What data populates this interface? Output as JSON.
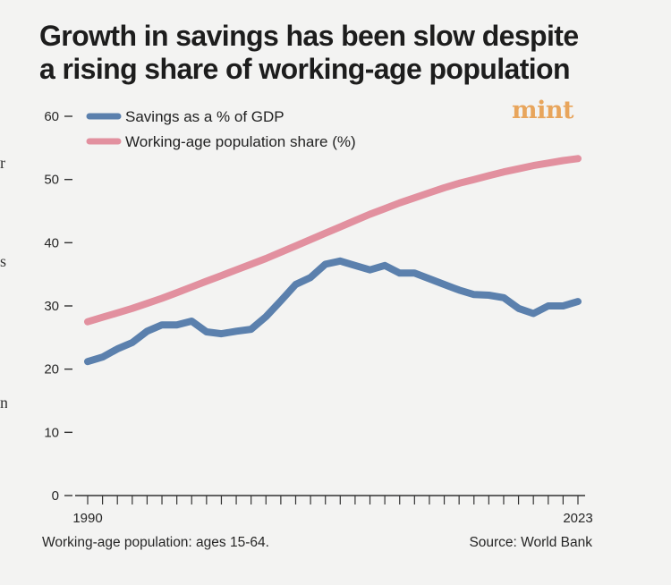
{
  "title_lines": [
    "Growth in savings has been slow despite",
    "a rising share of working-age population"
  ],
  "brand": "mint",
  "edge_glyphs": [
    "r",
    "s",
    "n"
  ],
  "footnote": "Working-age population: ages 15-64.",
  "source": "Source: World Bank",
  "colors": {
    "background": "#f3f3f2",
    "savings": "#5b80ad",
    "population": "#e2909f",
    "brand": "#e8a55c",
    "axis": "#333333"
  },
  "chart_data": {
    "type": "line",
    "title": "Growth in savings has been slow despite a rising share of working-age population",
    "xlabel": "",
    "ylabel": "",
    "xlim": [
      1990,
      2023
    ],
    "ylim": [
      0,
      60
    ],
    "yticks": [
      0,
      10,
      20,
      30,
      40,
      50,
      60
    ],
    "x_tick_labels": [
      "1990",
      "2023"
    ],
    "legend_position": "top-left",
    "x": [
      1990,
      1991,
      1992,
      1993,
      1994,
      1995,
      1996,
      1997,
      1998,
      1999,
      2000,
      2001,
      2002,
      2003,
      2004,
      2005,
      2006,
      2007,
      2008,
      2009,
      2010,
      2011,
      2012,
      2013,
      2014,
      2015,
      2016,
      2017,
      2018,
      2019,
      2020,
      2021,
      2022,
      2023
    ],
    "series": [
      {
        "name": "Savings as a % of GDP",
        "color": "#5b80ad",
        "values": [
          21.2,
          21.9,
          23.2,
          24.2,
          26.0,
          27.0,
          27.0,
          27.6,
          25.9,
          25.6,
          26.0,
          26.3,
          28.3,
          30.8,
          33.4,
          34.5,
          36.6,
          37.1,
          36.4,
          35.7,
          36.4,
          35.2,
          35.2,
          34.3,
          33.4,
          32.5,
          31.8,
          31.7,
          31.3,
          29.6,
          28.8,
          30.0,
          30.0,
          30.7
        ]
      },
      {
        "name": "Working-age population share (%)",
        "color": "#e2909f",
        "values": [
          27.5,
          28.2,
          28.9,
          29.6,
          30.4,
          31.2,
          32.1,
          33.0,
          33.9,
          34.8,
          35.7,
          36.6,
          37.5,
          38.5,
          39.5,
          40.5,
          41.5,
          42.5,
          43.5,
          44.5,
          45.4,
          46.3,
          47.1,
          47.9,
          48.7,
          49.4,
          50.0,
          50.6,
          51.2,
          51.7,
          52.2,
          52.6,
          53.0,
          53.3
        ]
      }
    ]
  }
}
